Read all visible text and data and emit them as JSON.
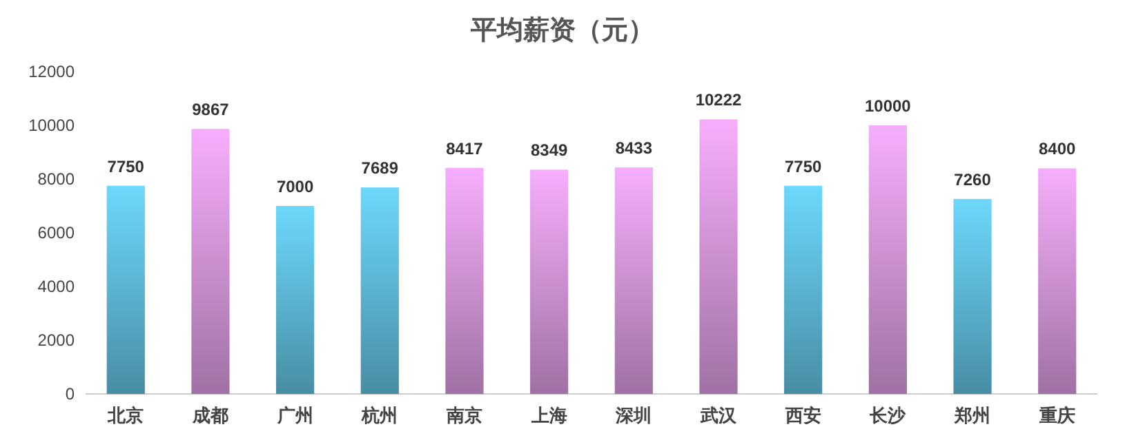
{
  "chart_data": {
    "type": "bar",
    "title": "平均薪资（元）",
    "categories": [
      "北京",
      "成都",
      "广州",
      "杭州",
      "南京",
      "上海",
      "深圳",
      "武汉",
      "西安",
      "长沙",
      "郑州",
      "重庆"
    ],
    "values": [
      7750,
      9867,
      7000,
      7689,
      8417,
      8349,
      8433,
      10222,
      7750,
      10000,
      7260,
      8400
    ],
    "colors": [
      "#6dd8fb",
      "#f6aefc",
      "#6dd8fb",
      "#6dd8fb",
      "#f6aefc",
      "#f6aefc",
      "#f6aefc",
      "#f6aefc",
      "#6dd8fb",
      "#f6aefc",
      "#6dd8fb",
      "#f6aefc"
    ],
    "ylim": [
      0,
      12000
    ],
    "yticks": [
      0,
      2000,
      4000,
      6000,
      8000,
      10000,
      12000
    ],
    "data_labels": true
  }
}
